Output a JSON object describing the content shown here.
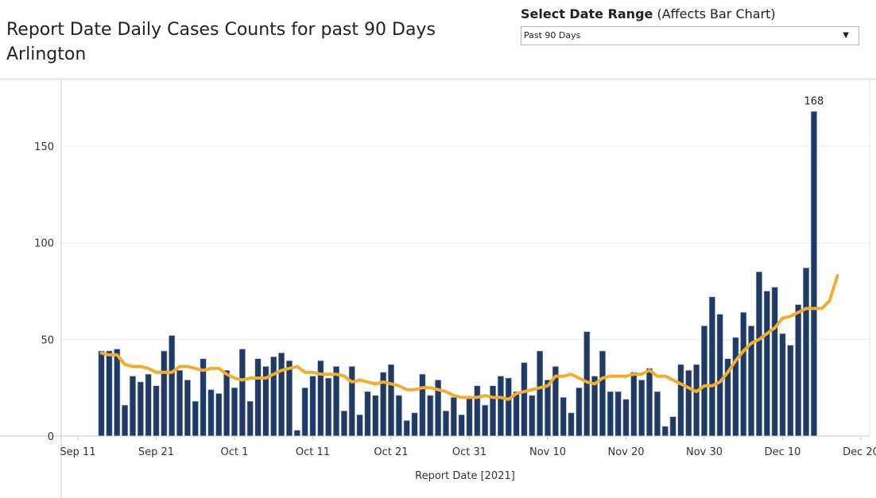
{
  "header": {
    "title_line1": "Report Date Daily Cases Counts for past 90 Days",
    "title_line2": "Arlington"
  },
  "filter": {
    "label_bold": "Select Date Range",
    "label_rest": "(Affects Bar Chart)",
    "selected": "Past 90 Days",
    "caret_icon": "chevron-down-icon"
  },
  "chart_data": {
    "type": "bar",
    "xlabel": "Report Date [2021]",
    "ylabel": "",
    "ylim": [
      0,
      180
    ],
    "yticks": [
      0,
      50,
      100,
      150
    ],
    "x_start": "2021-09-14",
    "xticks": [
      {
        "label": "Sep 11",
        "day": 0
      },
      {
        "label": "Sep 21",
        "day": 10
      },
      {
        "label": "Oct 1",
        "day": 20
      },
      {
        "label": "Oct 11",
        "day": 30
      },
      {
        "label": "Oct 21",
        "day": 40
      },
      {
        "label": "Oct 31",
        "day": 50
      },
      {
        "label": "Nov 10",
        "day": 60
      },
      {
        "label": "Nov 20",
        "day": 70
      },
      {
        "label": "Nov 30",
        "day": 80
      },
      {
        "label": "Dec 10",
        "day": 90
      },
      {
        "label": "Dec 20",
        "day": 100
      }
    ],
    "annotations": [
      {
        "text": "168",
        "index": 91
      }
    ],
    "bar_color": "#1f3a64",
    "line_color": "#f0ad2e",
    "grid": true,
    "series": [
      {
        "type": "bar",
        "values": [
          44,
          44,
          45,
          16,
          31,
          28,
          32,
          26,
          44,
          52,
          34,
          29,
          18,
          40,
          24,
          22,
          34,
          25,
          45,
          18,
          40,
          36,
          41,
          43,
          39,
          3,
          25,
          31,
          39,
          30,
          36,
          13,
          36,
          11,
          23,
          21,
          33,
          37,
          21,
          8,
          12,
          32,
          21,
          29,
          13,
          20,
          11,
          20,
          26,
          16,
          26,
          31,
          30,
          23,
          38,
          21,
          44,
          29,
          36,
          20,
          12,
          25,
          54,
          31,
          44,
          23,
          23,
          19,
          33,
          29,
          35,
          23,
          5,
          10,
          37,
          34,
          37,
          57,
          72,
          63,
          40,
          51,
          64,
          57,
          85,
          75,
          77,
          53,
          47,
          68,
          87,
          168
        ]
      },
      {
        "type": "line",
        "name": "",
        "values": [
          43,
          42,
          42,
          37,
          36,
          36,
          35,
          33,
          33,
          33,
          36,
          36,
          35,
          34,
          35,
          35,
          32,
          30,
          29,
          30,
          30,
          30,
          32,
          34,
          35,
          36,
          33,
          33,
          32,
          32,
          32,
          31,
          28,
          29,
          28,
          27,
          28,
          27,
          26,
          24,
          24,
          25,
          25,
          24,
          23,
          21,
          20,
          20,
          20,
          21,
          20,
          20,
          19,
          22,
          23,
          24,
          25,
          26,
          31,
          31,
          32,
          30,
          28,
          27,
          30,
          31,
          31,
          31,
          32,
          32,
          34,
          31,
          31,
          29,
          27,
          25,
          23,
          26,
          26,
          28,
          33,
          39,
          44,
          48,
          50,
          53,
          56,
          61,
          62,
          64,
          66,
          66,
          66,
          70,
          83
        ]
      }
    ]
  }
}
